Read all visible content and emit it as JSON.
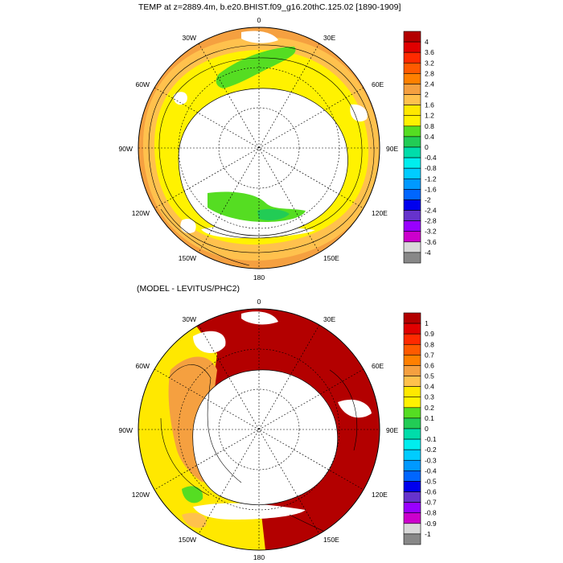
{
  "title_top": "TEMP at z=2889.4m, b.e20.BHIST.f09_g16.20thC.125.02 [1890-1909]",
  "title_bottom": "(MODEL - LEVITUS/PHC2)",
  "longitude_labels": [
    "0",
    "30E",
    "60E",
    "90E",
    "120E",
    "150E",
    "180",
    "150W",
    "120W",
    "90W",
    "60W",
    "30W"
  ],
  "colorbar_top": {
    "labels": [
      "4",
      "3.6",
      "3.2",
      "2.8",
      "2.4",
      "2",
      "1.6",
      "1.2",
      "0.8",
      "0.4",
      "0",
      "-0.4",
      "-0.8",
      "-1.2",
      "-1.6",
      "-2",
      "-2.4",
      "-2.8",
      "-3.2",
      "-3.6",
      "-4"
    ],
    "colors": [
      "#b30000",
      "#e00000",
      "#ff2a00",
      "#ff5a00",
      "#ff8000",
      "#f5a040",
      "#ffc14d",
      "#ffe800",
      "#fff200",
      "#55dd22",
      "#22cc55",
      "#00ddaa",
      "#00eeee",
      "#00ccff",
      "#0099ff",
      "#0066ff",
      "#0000ee",
      "#6633cc",
      "#9900ff",
      "#cc00cc",
      "#d9d9d9",
      "#888888"
    ]
  },
  "colorbar_bottom": {
    "labels": [
      "1",
      "0.9",
      "0.8",
      "0.7",
      "0.6",
      "0.5",
      "0.4",
      "0.3",
      "0.2",
      "0.1",
      "0",
      "-0.1",
      "-0.2",
      "-0.3",
      "-0.4",
      "-0.5",
      "-0.6",
      "-0.7",
      "-0.8",
      "-0.9",
      "-1"
    ],
    "colors": [
      "#b30000",
      "#e00000",
      "#ff2a00",
      "#ff5a00",
      "#ff8000",
      "#f5a040",
      "#ffc14d",
      "#ffe800",
      "#fff200",
      "#55dd22",
      "#22cc55",
      "#00ddaa",
      "#00eeee",
      "#00ccff",
      "#0099ff",
      "#0066ff",
      "#0000ee",
      "#6633cc",
      "#9900ff",
      "#cc00cc",
      "#d9d9d9",
      "#888888"
    ]
  }
}
